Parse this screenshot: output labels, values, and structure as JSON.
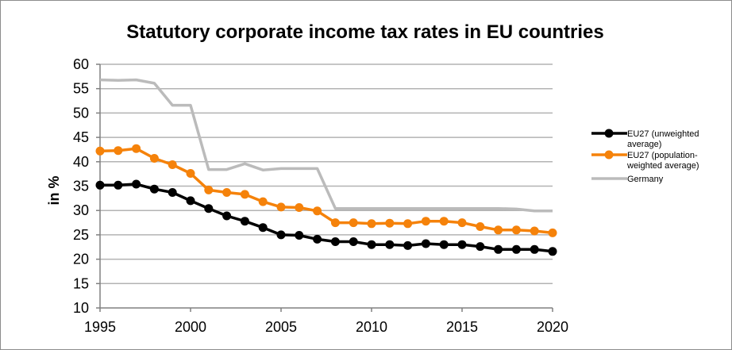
{
  "chart_data": {
    "type": "line",
    "title": "Statutory corporate income tax rates in EU countries",
    "xlabel": "",
    "ylabel": "in %",
    "xlim": [
      1995,
      2020
    ],
    "ylim": [
      10,
      60
    ],
    "x_ticks": [
      "1995",
      "2000",
      "2005",
      "2010",
      "2015",
      "2020"
    ],
    "y_ticks": [
      "10",
      "15",
      "20",
      "25",
      "30",
      "35",
      "40",
      "45",
      "50",
      "55",
      "60"
    ],
    "grid": "horizontal",
    "legend_position": "right",
    "x": [
      1995,
      1996,
      1997,
      1998,
      1999,
      2000,
      2001,
      2002,
      2003,
      2004,
      2005,
      2006,
      2007,
      2008,
      2009,
      2010,
      2011,
      2012,
      2013,
      2014,
      2015,
      2016,
      2017,
      2018,
      2019,
      2020
    ],
    "series": [
      {
        "name": "EU27 (unweighted average)",
        "legend_lines": [
          "EU27 (unweighted",
          "average)"
        ],
        "color": "#000000",
        "markers": true,
        "values": [
          35.2,
          35.2,
          35.4,
          34.4,
          33.7,
          32.0,
          30.4,
          28.9,
          27.8,
          26.5,
          25.0,
          24.9,
          24.1,
          23.6,
          23.6,
          23.0,
          23.0,
          22.8,
          23.2,
          23.0,
          23.0,
          22.6,
          22.0,
          22.0,
          22.0,
          21.6
        ]
      },
      {
        "name": "EU27 (population-weighted average)",
        "legend_lines": [
          "EU27 (population-",
          "weighted average)"
        ],
        "color": "#f5820a",
        "markers": true,
        "values": [
          42.2,
          42.3,
          42.7,
          40.7,
          39.4,
          37.6,
          34.2,
          33.7,
          33.3,
          31.8,
          30.7,
          30.6,
          29.9,
          27.5,
          27.5,
          27.3,
          27.4,
          27.3,
          27.8,
          27.8,
          27.5,
          26.7,
          26.0,
          26.0,
          25.8,
          25.4
        ]
      },
      {
        "name": "Germany",
        "legend_lines": [
          "Germany"
        ],
        "color": "#bbbbbb",
        "markers": false,
        "values": [
          56.8,
          56.7,
          56.8,
          56.1,
          51.6,
          51.6,
          38.4,
          38.4,
          39.6,
          38.3,
          38.6,
          38.6,
          38.6,
          30.4,
          30.4,
          30.4,
          30.4,
          30.4,
          30.4,
          30.4,
          30.4,
          30.4,
          30.4,
          30.3,
          29.9,
          29.9
        ]
      }
    ]
  }
}
